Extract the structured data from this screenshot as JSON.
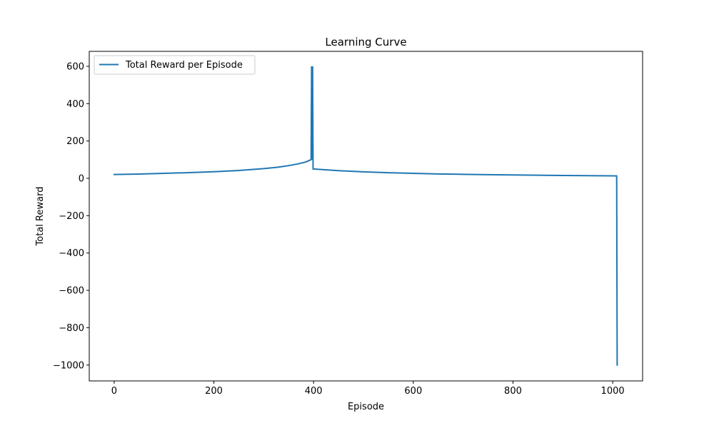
{
  "chart_data": {
    "type": "line",
    "title": "Learning Curve",
    "xlabel": "Episode",
    "ylabel": "Total Reward",
    "xlim": [
      -50,
      1060
    ],
    "ylim": [
      -1085,
      680
    ],
    "x_ticks": [
      0,
      200,
      400,
      600,
      800,
      1000
    ],
    "y_ticks": [
      600,
      400,
      200,
      0,
      -200,
      -400,
      -600,
      -800,
      -1000
    ],
    "x_tick_labels": [
      "0",
      "200",
      "400",
      "600",
      "800",
      "1000"
    ],
    "y_tick_labels": [
      "600",
      "400",
      "200",
      "0",
      "−200",
      "−400",
      "−600",
      "−800",
      "−1000"
    ],
    "grid": false,
    "legend_position": "upper-left",
    "series": [
      {
        "name": "Total Reward per Episode",
        "color": "#1f77b4",
        "x": [
          0,
          50,
          100,
          150,
          200,
          250,
          300,
          330,
          350,
          370,
          385,
          395,
          396,
          397,
          398,
          399,
          400,
          450,
          500,
          550,
          600,
          650,
          700,
          750,
          800,
          850,
          900,
          950,
          1000,
          1008,
          1009
        ],
        "y": [
          20.5,
          23,
          26.5,
          30.5,
          35.5,
          42,
          52,
          60,
          68,
          78,
          88,
          100,
          600,
          100,
          600,
          50,
          50,
          41,
          35,
          30,
          26.5,
          23.5,
          21.5,
          19.5,
          18,
          16.5,
          15.5,
          14.5,
          13.5,
          13,
          -1000
        ]
      }
    ]
  }
}
